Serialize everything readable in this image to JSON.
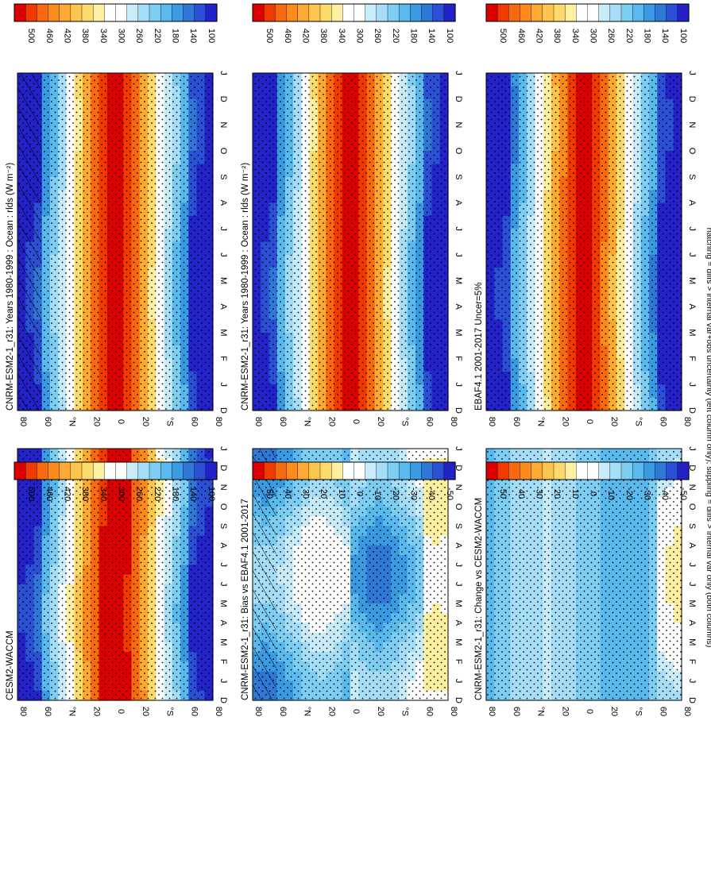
{
  "footnote": "hatching = diffs > internal var+obs uncertainty (left column only); stippling = diffs > internal var only (both columns)",
  "month_labels": [
    "D",
    "J",
    "F",
    "M",
    "A",
    "M",
    "J",
    "J",
    "A",
    "S",
    "O",
    "N",
    "D",
    "J"
  ],
  "lat_labels": [
    "80",
    "60",
    "°N",
    "20",
    "0",
    "20",
    "°S",
    "60",
    "80"
  ],
  "colors": {
    "abs": [
      "#dd0000",
      "#f03a00",
      "#f86a10",
      "#fb8c1c",
      "#fdaa32",
      "#fdc44e",
      "#fdda6c",
      "#fef0a0",
      "#ffffff",
      "#ffffff",
      "#c9ecfb",
      "#a6ddf8",
      "#7ecdf3",
      "#5ab9ed",
      "#3a9ae2",
      "#2f78d8",
      "#2b50d6",
      "#2222c8"
    ],
    "diff": [
      "#dd0000",
      "#f03a00",
      "#f86a10",
      "#fb8c1c",
      "#fdaa32",
      "#fdc44e",
      "#fdda6c",
      "#fef0a0",
      "#ffffff",
      "#ffffff",
      "#c9ecfb",
      "#a6ddf8",
      "#7ecdf3",
      "#5ab9ed",
      "#3a9ae2",
      "#2f78d8",
      "#2b50d6",
      "#2222c8"
    ]
  },
  "chart_data": [
    {
      "type": "heatmap",
      "title": "CNRM-ESM2-1_r31: Years 1980-1999 : Ocean : rlds (W m⁻²)",
      "field": "model_a",
      "hatching": true,
      "stippling": true,
      "colorbar": [
        "500",
        "460",
        "420",
        "380",
        "340",
        "300",
        "260",
        "220",
        "180",
        "140",
        "100"
      ]
    },
    {
      "type": "heatmap",
      "title": "CNRM-ESM2-1_r31: Years 1980-1999 : Ocean : rlds (W m⁻²)",
      "field": "model_a",
      "hatching": false,
      "stippling": true,
      "colorbar": [
        "500",
        "460",
        "420",
        "380",
        "340",
        "300",
        "260",
        "220",
        "180",
        "140",
        "100"
      ]
    },
    {
      "type": "heatmap",
      "title": "EBAF4.1 2001-2017 Uncer=5%",
      "field": "obs",
      "hatching": false,
      "stippling": true,
      "colorbar": [
        "500",
        "460",
        "420",
        "380",
        "340",
        "300",
        "260",
        "220",
        "180",
        "140",
        "100"
      ]
    },
    {
      "type": "heatmap",
      "title": "CESM2-WACCM",
      "field": "model_b",
      "hatching": false,
      "stippling": true,
      "colorbar": [
        "500",
        "460",
        "420",
        "380",
        "340",
        "300",
        "260",
        "220",
        "180",
        "140",
        "100"
      ]
    },
    {
      "type": "heatmap",
      "title": "CNRM-ESM2-1_r31: Bias vs EBAF4.1 2001-2017",
      "field": "bias",
      "hatching": true,
      "stippling": true,
      "colorbar": [
        "50",
        "40",
        "30",
        "20",
        "10",
        "0",
        "-10",
        "-20",
        "-30",
        "-40",
        "-50"
      ]
    },
    {
      "type": "heatmap",
      "title": "CNRM-ESM2-1_r31: Change vs CESM2-WACCM",
      "field": "change",
      "hatching": false,
      "stippling": true,
      "colorbar": [
        "50",
        "40",
        "30",
        "20",
        "10",
        "0",
        "-10",
        "-20",
        "-30",
        "-40",
        "-50"
      ]
    }
  ]
}
